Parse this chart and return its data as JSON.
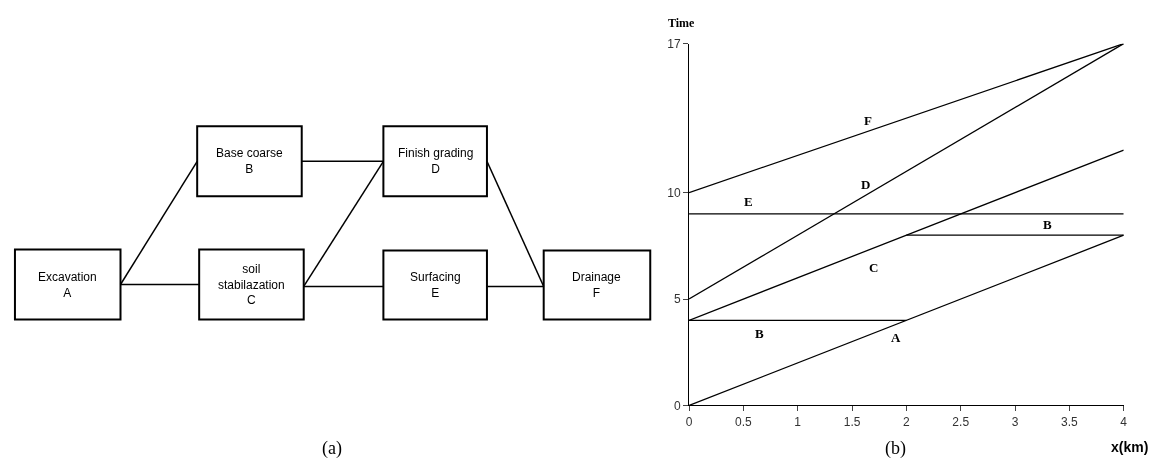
{
  "chart_data": [
    {
      "type": "other",
      "annotations": [
        "Excavation\nA",
        "Base coarse\nB",
        "soil\nstabilazation\nC",
        "Finish grading\nD",
        "Surfacing\nE",
        "Drainage\nF",
        "(a)"
      ]
    },
    {
      "type": "line",
      "xlabel": "x(km)",
      "ylabel": "Time",
      "xlim": [
        0,
        4
      ],
      "ylim": [
        0,
        17
      ],
      "xticks": [
        0,
        0.5,
        1,
        1.5,
        2,
        2.5,
        3,
        3.5,
        4
      ],
      "yticks": [
        0,
        5,
        10,
        17
      ],
      "grid": false,
      "marker": "none",
      "line_style": "solid",
      "series": [
        {
          "color": "#000000",
          "x": [
            0,
            4
          ],
          "values": [
            0,
            8
          ]
        },
        {
          "color": "#000000",
          "x": [
            0,
            2
          ],
          "values": [
            4,
            4
          ]
        },
        {
          "color": "#000000",
          "x": [
            2,
            4
          ],
          "values": [
            8,
            8
          ]
        },
        {
          "color": "#000000",
          "x": [
            0,
            4
          ],
          "values": [
            4,
            12
          ]
        },
        {
          "color": "#000000",
          "x": [
            0,
            4
          ],
          "values": [
            5,
            17
          ]
        },
        {
          "color": "#000000",
          "x": [
            0,
            4
          ],
          "values": [
            9,
            9
          ]
        },
        {
          "color": "#000000",
          "x": [
            0,
            4
          ],
          "values": [
            10,
            17
          ]
        }
      ],
      "annotations": [
        "E",
        "D",
        "F",
        "C",
        "B",
        "B",
        "A",
        "(b)"
      ]
    }
  ]
}
